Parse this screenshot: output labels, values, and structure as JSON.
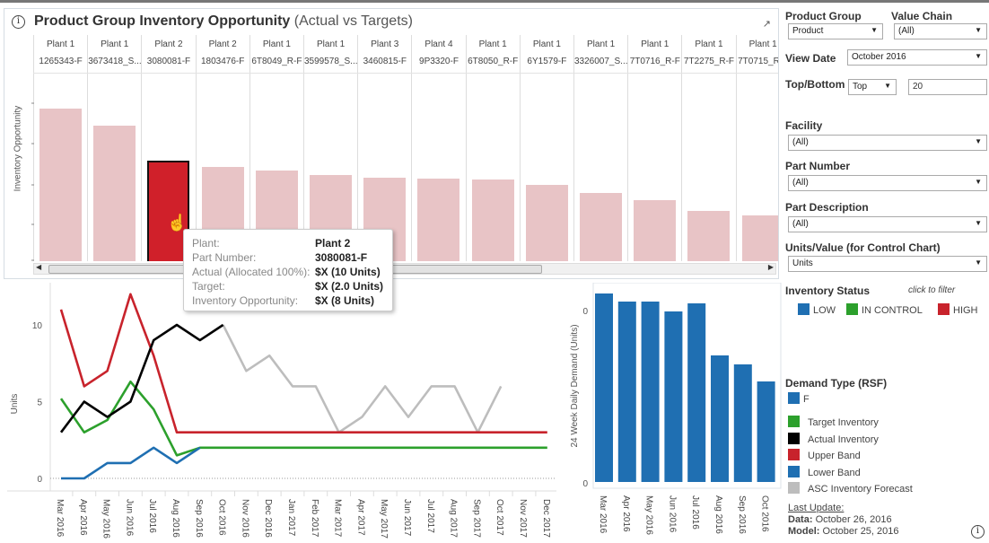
{
  "title": {
    "bold": "Product Group Inventory Opportunity",
    "rest": " (Actual vs Targets)",
    "info_icon": "info-icon",
    "popout_icon": "popout-icon"
  },
  "top_chart": {
    "y_label": "Inventory Opportunity",
    "columns": [
      {
        "plant": "Plant 1",
        "part": "1265343-F"
      },
      {
        "plant": "Plant 1",
        "part": "3673418_S..."
      },
      {
        "plant": "Plant 2",
        "part": "3080081-F"
      },
      {
        "plant": "Plant 2",
        "part": "1803476-F"
      },
      {
        "plant": "Plant 1",
        "part": "6T8049_R-F"
      },
      {
        "plant": "Plant 1",
        "part": "3599578_S..."
      },
      {
        "plant": "Plant 3",
        "part": "3460815-F"
      },
      {
        "plant": "Plant 4",
        "part": "9P3320-F"
      },
      {
        "plant": "Plant 1",
        "part": "6T8050_R-F"
      },
      {
        "plant": "Plant 1",
        "part": "6Y1579-F"
      },
      {
        "plant": "Plant 1",
        "part": "3326007_S..."
      },
      {
        "plant": "Plant 1",
        "part": "7T0716_R-F"
      },
      {
        "plant": "Plant 1",
        "part": "7T2275_R-F"
      },
      {
        "plant": "Plant 1",
        "part": "7T0715_R-F"
      }
    ],
    "values": [
      199,
      180,
      141,
      134,
      130,
      125,
      122,
      121,
      120,
      114,
      105,
      96,
      84,
      79
    ],
    "highlighted_index": 2,
    "bar_color": "#e8c4c6",
    "highlight_color": "#d0202a"
  },
  "tooltip": {
    "rows": [
      {
        "k": "Plant:",
        "v": "Plant 2"
      },
      {
        "k": "Part Number:",
        "v": "3080081-F"
      },
      {
        "k": "Actual (Allocated 100%):",
        "v": "$X (10 Units)"
      },
      {
        "k": "Target:",
        "v": "$X (2.0 Units)"
      },
      {
        "k": "Inventory Opportunity:",
        "v": "$X (8 Units)"
      }
    ]
  },
  "chart_data": [
    {
      "type": "line",
      "ylabel": "Units",
      "ylim": [
        0,
        12.5
      ],
      "yticks": [
        "0",
        "5",
        "10"
      ],
      "x": [
        "Mar 2016",
        "Apr 2016",
        "May 2016",
        "Jun 2016",
        "Jul 2016",
        "Aug 2016",
        "Sep 2016",
        "Oct 2016",
        "Nov 2016",
        "Dec 2016",
        "Jan 2017",
        "Feb 2017",
        "Mar 2017",
        "Apr 2017",
        "May 2017",
        "Jun 2017",
        "Jul 2017",
        "Aug 2017",
        "Sep 2017",
        "Oct 2017",
        "Nov 2017",
        "Dec 2017"
      ],
      "series": [
        {
          "name": "ASC Inventory Forecast",
          "color": "#bdbdbd",
          "values": [
            null,
            null,
            null,
            null,
            null,
            null,
            null,
            10,
            7,
            8,
            6,
            6,
            3,
            4,
            6,
            4,
            6,
            6,
            3,
            6,
            null,
            null
          ]
        },
        {
          "name": "Upper Band",
          "color": "#c8232c",
          "values": [
            11,
            6,
            7,
            12,
            8,
            3,
            3,
            3,
            3,
            3,
            3,
            3,
            3,
            3,
            3,
            3,
            3,
            3,
            3,
            3,
            3,
            3
          ]
        },
        {
          "name": "Target Inventory",
          "color": "#2ca02c",
          "values": [
            5.2,
            3,
            3.8,
            6.3,
            4.5,
            1.5,
            2,
            2,
            2,
            2,
            2,
            2,
            2,
            2,
            2,
            2,
            2,
            2,
            2,
            2,
            2,
            2
          ]
        },
        {
          "name": "Lower Band",
          "color": "#1f6fb2",
          "values": [
            0,
            0,
            1,
            1,
            2,
            1,
            2,
            null,
            null,
            null,
            null,
            null,
            null,
            null,
            null,
            null,
            null,
            null,
            null,
            null,
            null,
            null
          ]
        },
        {
          "name": "Actual Inventory",
          "color": "#000000",
          "values": [
            3,
            5,
            4,
            5,
            9,
            10,
            9,
            10,
            null,
            null,
            null,
            null,
            null,
            null,
            null,
            null,
            null,
            null,
            null,
            null,
            null,
            null
          ]
        }
      ]
    },
    {
      "type": "bar",
      "ylabel": "24 Week Daily Demand (Units)",
      "yticks": [
        "0",
        "0"
      ],
      "categories": [
        "Mar 2016",
        "Apr 2016",
        "May 2016",
        "Jun 2016",
        "Jul 2016",
        "Aug 2016",
        "Sep 2016",
        "Oct 2016"
      ],
      "values": [
        210,
        201,
        201,
        190,
        199,
        141,
        131,
        112
      ],
      "color": "#1f6fb2"
    }
  ],
  "filters": {
    "product_group": {
      "label": "Product Group",
      "value": "Product"
    },
    "value_chain": {
      "label": "Value Chain",
      "value": "(All)"
    },
    "view_date": {
      "label": "View Date",
      "value": "October 2016"
    },
    "top_bottom": {
      "label": "Top/Bottom",
      "value": "Top",
      "count": "20"
    },
    "facility": {
      "label": "Facility",
      "value": "(All)"
    },
    "part_number": {
      "label": "Part Number",
      "value": "(All)"
    },
    "part_description": {
      "label": "Part Description",
      "value": "(All)"
    },
    "units_value": {
      "label": "Units/Value (for Control Chart)",
      "value": "Units"
    }
  },
  "inventory_status": {
    "label": "Inventory Status",
    "hint": "click to filter",
    "items": [
      {
        "label": "LOW",
        "color": "#1f6fb2"
      },
      {
        "label": "IN CONTROL",
        "color": "#2ca02c"
      },
      {
        "label": "HIGH",
        "color": "#c8232c"
      }
    ]
  },
  "demand_type": {
    "label": "Demand Type (RSF)",
    "items": [
      {
        "label": "F",
        "color": "#1f6fb2"
      }
    ]
  },
  "line_legend": [
    {
      "label": "Target Inventory",
      "color": "#2ca02c"
    },
    {
      "label": "Actual Inventory",
      "color": "#000000"
    },
    {
      "label": "Upper Band",
      "color": "#c8232c"
    },
    {
      "label": "Lower Band",
      "color": "#1f6fb2"
    },
    {
      "label": "ASC Inventory Forecast",
      "color": "#bdbdbd"
    }
  ],
  "last_update": {
    "label": "Last Update:",
    "data_k": "Data:",
    "data_v": " October 26, 2016",
    "model_k": "Model:",
    "model_v": " October 25, 2016"
  }
}
